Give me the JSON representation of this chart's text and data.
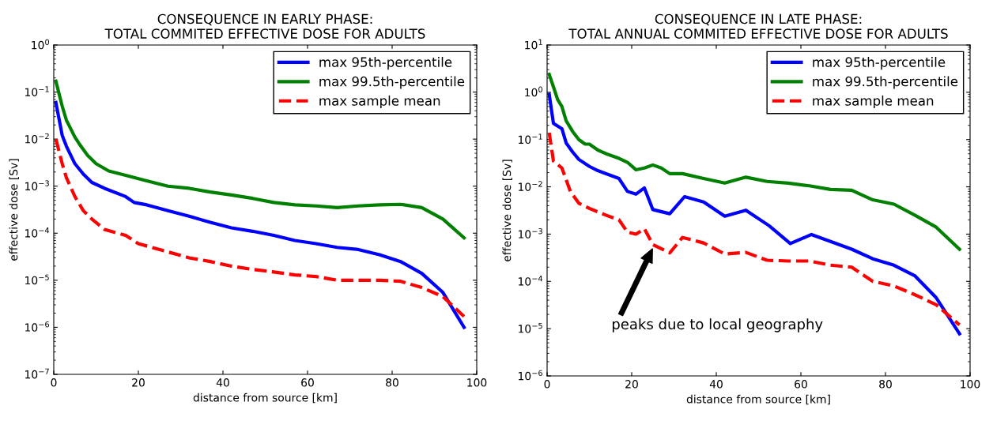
{
  "chart_data": [
    {
      "type": "line",
      "title": "CONSEQUENCE IN EARLY PHASE:\nTOTAL COMMITED EFFECTIVE DOSE FOR ADULTS",
      "xlabel": "distance from source [km]",
      "ylabel": "effective dose [Sv]",
      "log": "y",
      "legend": "top right",
      "grid": false,
      "xlim": [
        0,
        100
      ],
      "xticks": [
        0,
        20,
        40,
        60,
        80,
        100
      ],
      "ylim": [
        1e-07,
        1
      ],
      "yticks": [
        {
          "value": 1e-07,
          "label": "10$^{−7}$"
        },
        {
          "value": 1e-06,
          "label": "10$^{−6}$"
        },
        {
          "value": 1e-05,
          "label": "10$^{−5}$"
        },
        {
          "value": 0.0001,
          "label": "10$^{−4}$"
        },
        {
          "value": 0.001,
          "label": "10$^{−3}$"
        },
        {
          "value": 0.01,
          "label": "10$^{−2}$"
        },
        {
          "value": 0.1,
          "label": "10$^{−1}$"
        },
        {
          "value": 1,
          "label": "10$^{0}$"
        }
      ],
      "series": [
        {
          "name": "max 95th-percentile",
          "color": "#0000ff",
          "line_style": "solid",
          "x": [
            0.5,
            2,
            3,
            5,
            7,
            9,
            12,
            17,
            19,
            22,
            27,
            32,
            37,
            42,
            47,
            52,
            57,
            62,
            67,
            72,
            77,
            82,
            87,
            92,
            97
          ],
          "values": [
            0.06,
            0.012,
            0.007,
            0.003,
            0.0018,
            0.0012,
            0.0009,
            0.0006,
            0.00045,
            0.0004,
            0.0003,
            0.00023,
            0.00017,
            0.00013,
            0.00011,
            9e-05,
            7e-05,
            6e-05,
            5e-05,
            4.5e-05,
            3.5e-05,
            2.5e-05,
            1.4e-05,
            5.5e-06,
            1e-06
          ]
        },
        {
          "name": "max 99.5th-percentile",
          "color": "#008000",
          "line_style": "solid",
          "x": [
            0.5,
            2,
            3,
            5,
            6,
            8,
            10,
            13,
            17,
            22,
            27,
            32,
            37,
            42,
            47,
            52,
            57,
            62,
            67,
            72,
            77,
            82,
            87,
            92,
            97
          ],
          "values": [
            0.17,
            0.05,
            0.025,
            0.011,
            0.008,
            0.0045,
            0.003,
            0.0021,
            0.0017,
            0.0013,
            0.001,
            0.0009,
            0.00075,
            0.00065,
            0.00055,
            0.00045,
            0.0004,
            0.00038,
            0.00035,
            0.00038,
            0.0004,
            0.00041,
            0.00035,
            0.0002,
            8e-05
          ]
        },
        {
          "name": "max sample mean",
          "color": "#ff0000",
          "line_style": "dashed",
          "x": [
            0.5,
            2,
            3,
            5,
            7,
            9,
            12,
            17,
            20,
            27,
            32,
            37,
            42,
            47,
            52,
            57,
            62,
            67,
            72,
            77,
            82,
            87,
            92,
            97
          ],
          "values": [
            0.01,
            0.003,
            0.0015,
            0.0006,
            0.0003,
            0.0002,
            0.00012,
            9e-05,
            6e-05,
            4e-05,
            3e-05,
            2.5e-05,
            2e-05,
            1.7e-05,
            1.5e-05,
            1.3e-05,
            1.2e-05,
            1e-05,
            1e-05,
            1e-05,
            9.5e-06,
            7e-06,
            4.5e-06,
            1.7e-06
          ]
        }
      ]
    },
    {
      "type": "line",
      "title": "CONSEQUENCE IN LATE PHASE:\nTOTAL ANNUAL COMMITED EFFECTIVE DOSE FOR ADULTS",
      "xlabel": "distance from source [km]",
      "ylabel": "effective dose [Sv]",
      "log": "y",
      "legend": "top right",
      "grid": false,
      "xlim": [
        0,
        100
      ],
      "xticks": [
        0,
        20,
        40,
        60,
        80,
        100
      ],
      "ylim": [
        1e-06,
        10
      ],
      "yticks": [
        {
          "value": 1e-06,
          "label": "10$^{−6}$"
        },
        {
          "value": 1e-05,
          "label": "10$^{−5}$"
        },
        {
          "value": 0.0001,
          "label": "10$^{−4}$"
        },
        {
          "value": 0.001,
          "label": "10$^{−3}$"
        },
        {
          "value": 0.01,
          "label": "10$^{−2}$"
        },
        {
          "value": 0.1,
          "label": "10$^{−1}$"
        },
        {
          "value": 1,
          "label": "10$^{0}$"
        },
        {
          "value": 10,
          "label": "10$^{1}$"
        }
      ],
      "annotations": [
        "peaks due to local geography"
      ],
      "series": [
        {
          "name": "max 95th-percentile",
          "color": "#0000ff",
          "line_style": "solid",
          "x": [
            0.5,
            1.5,
            3.5,
            4.5,
            6,
            7.5,
            10,
            12,
            17,
            19,
            21,
            23,
            25,
            29,
            32.5,
            37,
            42,
            47,
            52.5,
            57.5,
            62.5,
            67,
            72,
            77,
            82,
            87,
            92,
            97.5
          ],
          "values": [
            0.9,
            0.22,
            0.17,
            0.085,
            0.055,
            0.038,
            0.027,
            0.022,
            0.015,
            0.008,
            0.007,
            0.0095,
            0.0033,
            0.0027,
            0.0062,
            0.0048,
            0.0024,
            0.0032,
            0.0015,
            0.00063,
            0.00098,
            0.0007,
            0.00048,
            0.0003,
            0.00022,
            0.00013,
            4.5e-05,
            7.8e-06
          ]
        },
        {
          "name": "max 99.5th-percentile",
          "color": "#008000",
          "line_style": "solid",
          "x": [
            0.5,
            1.5,
            2.5,
            3.5,
            4.5,
            6,
            7.5,
            9,
            10,
            12,
            14,
            17,
            19,
            21,
            23,
            25,
            27,
            29,
            32,
            37,
            42,
            47,
            52,
            57,
            62,
            67,
            72,
            77,
            82,
            87,
            92,
            97.5
          ],
          "values": [
            2.4,
            1.3,
            0.7,
            0.5,
            0.25,
            0.15,
            0.1,
            0.08,
            0.08,
            0.06,
            0.05,
            0.04,
            0.033,
            0.023,
            0.025,
            0.029,
            0.025,
            0.019,
            0.019,
            0.015,
            0.012,
            0.016,
            0.013,
            0.012,
            0.0105,
            0.0088,
            0.0085,
            0.0053,
            0.0043,
            0.0025,
            0.0014,
            0.00048
          ]
        },
        {
          "name": "max sample mean",
          "color": "#ff0000",
          "line_style": "dashed",
          "x": [
            0.5,
            1.5,
            3.5,
            5.5,
            7.5,
            10,
            14,
            17,
            19,
            21,
            23,
            25,
            29,
            32,
            37,
            42,
            47,
            52,
            57,
            62,
            67,
            72,
            77,
            82,
            87,
            92,
            97.5
          ],
          "values": [
            0.14,
            0.035,
            0.025,
            0.008,
            0.0045,
            0.0035,
            0.0025,
            0.002,
            0.0011,
            0.001,
            0.0013,
            0.0006,
            0.0004,
            0.00085,
            0.00065,
            0.00038,
            0.00041,
            0.00028,
            0.00027,
            0.00027,
            0.00022,
            0.0002,
            0.0001,
            8e-05,
            5.2e-05,
            3.2e-05,
            1.2e-05
          ]
        }
      ]
    }
  ]
}
